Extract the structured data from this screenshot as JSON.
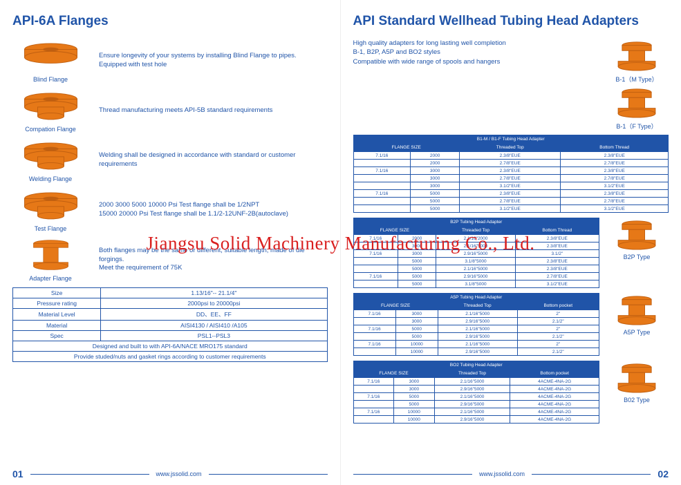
{
  "colors": {
    "brand": "#2054a8",
    "flange": "#e67817",
    "flange_dark": "#c05f10",
    "watermark": "#d92020"
  },
  "watermark": "Jiangsu Solid Machinery Manufacturing Co., Ltd.",
  "left": {
    "title": "API-6A Flanges",
    "flanges": [
      {
        "label": "Blind Flange",
        "desc": "Ensure longevity of your systems by installing Blind Flange to pipes.\nEquipped with test hole"
      },
      {
        "label": "Compation Flange",
        "desc": "Thread manufacturing meets API-5B standard requirements"
      },
      {
        "label": "Welding Flange",
        "desc": "Welding  shall be designed in accordance with standard or customer requirements"
      },
      {
        "label": "Test Flange",
        "desc": "2000 3000 5000 10000 Psi Test flange shall be 1/2NPT\n15000 20000 Psi Test flange shall be 1.1/2-12UNF-2B(autoclave)"
      },
      {
        "label": "Adapter Flange",
        "desc": "Both flanges may be the same or different, suitable length, made of die forgings.\nMeet the requirement of 75K"
      }
    ],
    "spec": {
      "rows": [
        [
          "Size",
          "1.13/16\"-- 21.1/4\""
        ],
        [
          "Pressure rating",
          "2000psi to 20000psi"
        ],
        [
          "Material Level",
          "DD、EE、FF"
        ],
        [
          "Material",
          "AISI4130 / AISI410 /A105"
        ],
        [
          "Spec",
          "PSL1--PSL3"
        ]
      ],
      "full_rows": [
        "Designed and built to with API-6A/NACE MRO175 standard",
        "Provide studed/nuts and gasket rings according to customer requirements"
      ]
    },
    "pagenum": "01",
    "url": "www.jssolid.com"
  },
  "right": {
    "title": "API Standard Wellhead Tubing Head Adapters",
    "intro": "High quality adapters for long lasting well completion\nB-1, B2P, A5P and BO2 styles\nCompatible with wide range of spools and hangers",
    "top_labels": [
      "B-1（M Type）",
      "B-1（F Type）"
    ],
    "tables": [
      {
        "title": "B1-M / B1-F  Tubing  Head  Adapter",
        "cols": [
          "FLANGE SIZE",
          "",
          "Threaded Top",
          "Bottom Thread"
        ],
        "rows": [
          [
            "7.1/16",
            "2000",
            "2.3/8\"EUE",
            "2.3/8\"EUE"
          ],
          [
            "",
            "2000",
            "2.7/8\"EUE",
            "2.7/8\"EUE"
          ],
          [
            "7.1/16",
            "3000",
            "2.3/8\"EUE",
            "2.3/8\"EUE"
          ],
          [
            "",
            "3000",
            "2.7/8\"EUE",
            "2.7/8\"EUE"
          ],
          [
            "",
            "3000",
            "3.1/2\"EUE",
            "3.1/2\"EUE"
          ],
          [
            "7.1/16",
            "5000",
            "2.3/8\"EUE",
            "2.3/8\"EUE"
          ],
          [
            "",
            "5000",
            "2.7/8\"EUE",
            "2.7/8\"EUE"
          ],
          [
            "",
            "5000",
            "3.1/2\"EUE",
            "3.1/2\"EUE"
          ]
        ]
      },
      {
        "title": "B2P Tubing  Head  Adapter",
        "cols": [
          "FLANGE SIZE",
          "",
          "Threaded Top",
          "Bottom Thread"
        ],
        "label": "B2P  Type",
        "rows": [
          [
            "7.1/16",
            "2000",
            "2.1/16\"2000",
            "2.3/8\"EUE"
          ],
          [
            "",
            "3000",
            "2.1/16\"5000",
            "2.3/8\"EUE"
          ],
          [
            "7.1/16",
            "3000",
            "2.9/16\"5000",
            "3.1/2\""
          ],
          [
            "",
            "5000",
            "3.1/8\"5000",
            "2.3/8\"EUE"
          ],
          [
            "",
            "5000",
            "2.1/16\"5000",
            "2.3/8\"EUE"
          ],
          [
            "7.1/16",
            "5000",
            "2.9/16\"5000",
            "2.7/8\"EUE"
          ],
          [
            "",
            "5000",
            "3.1/8\"5000",
            "3.1/2\"EUE"
          ]
        ]
      },
      {
        "title": "A5P Tubing Head Adapter",
        "cols": [
          "FLANGE SIZE",
          "",
          "Threaded Top",
          "Bottom pocket"
        ],
        "label": "A5P  Type",
        "rows": [
          [
            "7.1/16",
            "3000",
            "2.1/16\"5000",
            "2\""
          ],
          [
            "",
            "3000",
            "2.9/16\"5000",
            "2.1/2\""
          ],
          [
            "7.1/16",
            "5000",
            "2.1/16\"5000",
            "2\""
          ],
          [
            "",
            "5000",
            "2.9/16\"5000",
            "2.1/2\""
          ],
          [
            "7.1/16",
            "10000",
            "2.1/16\"5000",
            "2\""
          ],
          [
            "",
            "10000",
            "2.9/16\"5000",
            "2.1/2\""
          ]
        ]
      },
      {
        "title": "BO2 Tubing Head Adapter",
        "cols": [
          "FLANGE SIZE",
          "",
          "Threaded Top",
          "Bottom pocket"
        ],
        "label": "B02  Type",
        "rows": [
          [
            "7.1/16",
            "3000",
            "2.1/16\"5000",
            "4ACME-4NA-2G"
          ],
          [
            "",
            "3000",
            "2.9/16\"5000",
            "4ACME-4NA-2G"
          ],
          [
            "7.1/16",
            "5000",
            "2.1/16\"5000",
            "4ACME-4NA-2G"
          ],
          [
            "",
            "5000",
            "2.9/16\"5000",
            "4ACME-4NA-2G"
          ],
          [
            "7.1/16",
            "10000",
            "2.1/16\"5000",
            "4ACME-4NA-2G"
          ],
          [
            "",
            "10000",
            "2.9/16\"5000",
            "4ACME-4NA-2G"
          ]
        ]
      }
    ],
    "pagenum": "02",
    "url": "www.jssolid.com"
  }
}
